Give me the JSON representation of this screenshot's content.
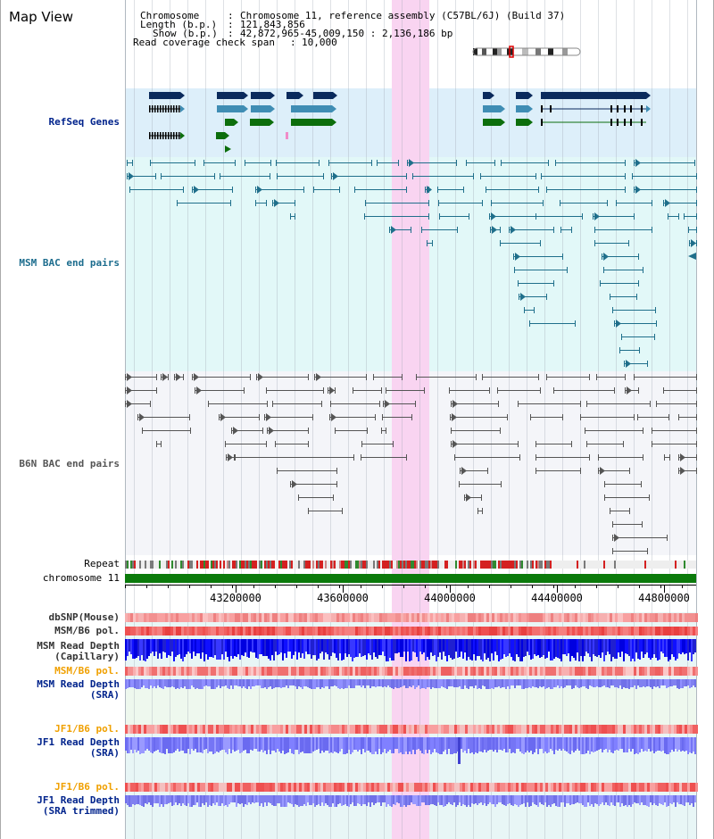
{
  "page": {
    "title": "Map View"
  },
  "info": {
    "chromosome_key": "Chromosome",
    "chromosome_value": "Chromosome 11, reference assembly (C57BL/6J) (Build 37)",
    "length_key": "Length (b.p.)",
    "length_value": "121,843,856",
    "show_key": "Show (b.p.)",
    "show_value": "42,872,965-45,009,150 : 2,136,186 bp",
    "read_span_key": "Read coverage check span",
    "read_span_value": "10,000"
  },
  "tracks": {
    "refseq": "RefSeq Genes",
    "msm_bac": "MSM BAC end pairs",
    "b6n_bac": "B6N BAC end pairs",
    "repeat": "Repeat",
    "chromosome": "chromosome 11",
    "dbsnp": "dbSNP(Mouse)",
    "msm_pol": "MSM/B6 pol.",
    "msm_depth_cap_1": "MSM Read Depth",
    "msm_depth_cap_2": "(Capillary)",
    "msm_pol2": "MSM/B6 pol.",
    "msm_depth_sra_1": "MSM Read Depth",
    "msm_depth_sra_2": "(SRA)",
    "jf1_pol": "JF1/B6 pol.",
    "jf1_depth_1": "JF1 Read Depth",
    "jf1_depth_2": "(SRA)",
    "jf1_pol2": "JF1/B6 pol.",
    "jf1_trim_1": "JF1 Read Depth",
    "jf1_trim_2": "(SRA trimmed)"
  },
  "axis": {
    "ticks": [
      "43200000",
      "43600000",
      "44000000",
      "44400000",
      "44800000"
    ]
  },
  "colors": {
    "highlight": "#f9d4f1",
    "refseq_bg": "#ddeffa",
    "msm_bg": "#e2f8f8",
    "b6n_bg": "#f4f5f9",
    "gene_dark": "#0a2a5c",
    "gene_mid": "#3f8db4",
    "gene_green": "#0c6e0c",
    "msm_line": "#1f6f8b",
    "b6n_line": "#555555",
    "chrom_green": "#0b7a0b"
  }
}
